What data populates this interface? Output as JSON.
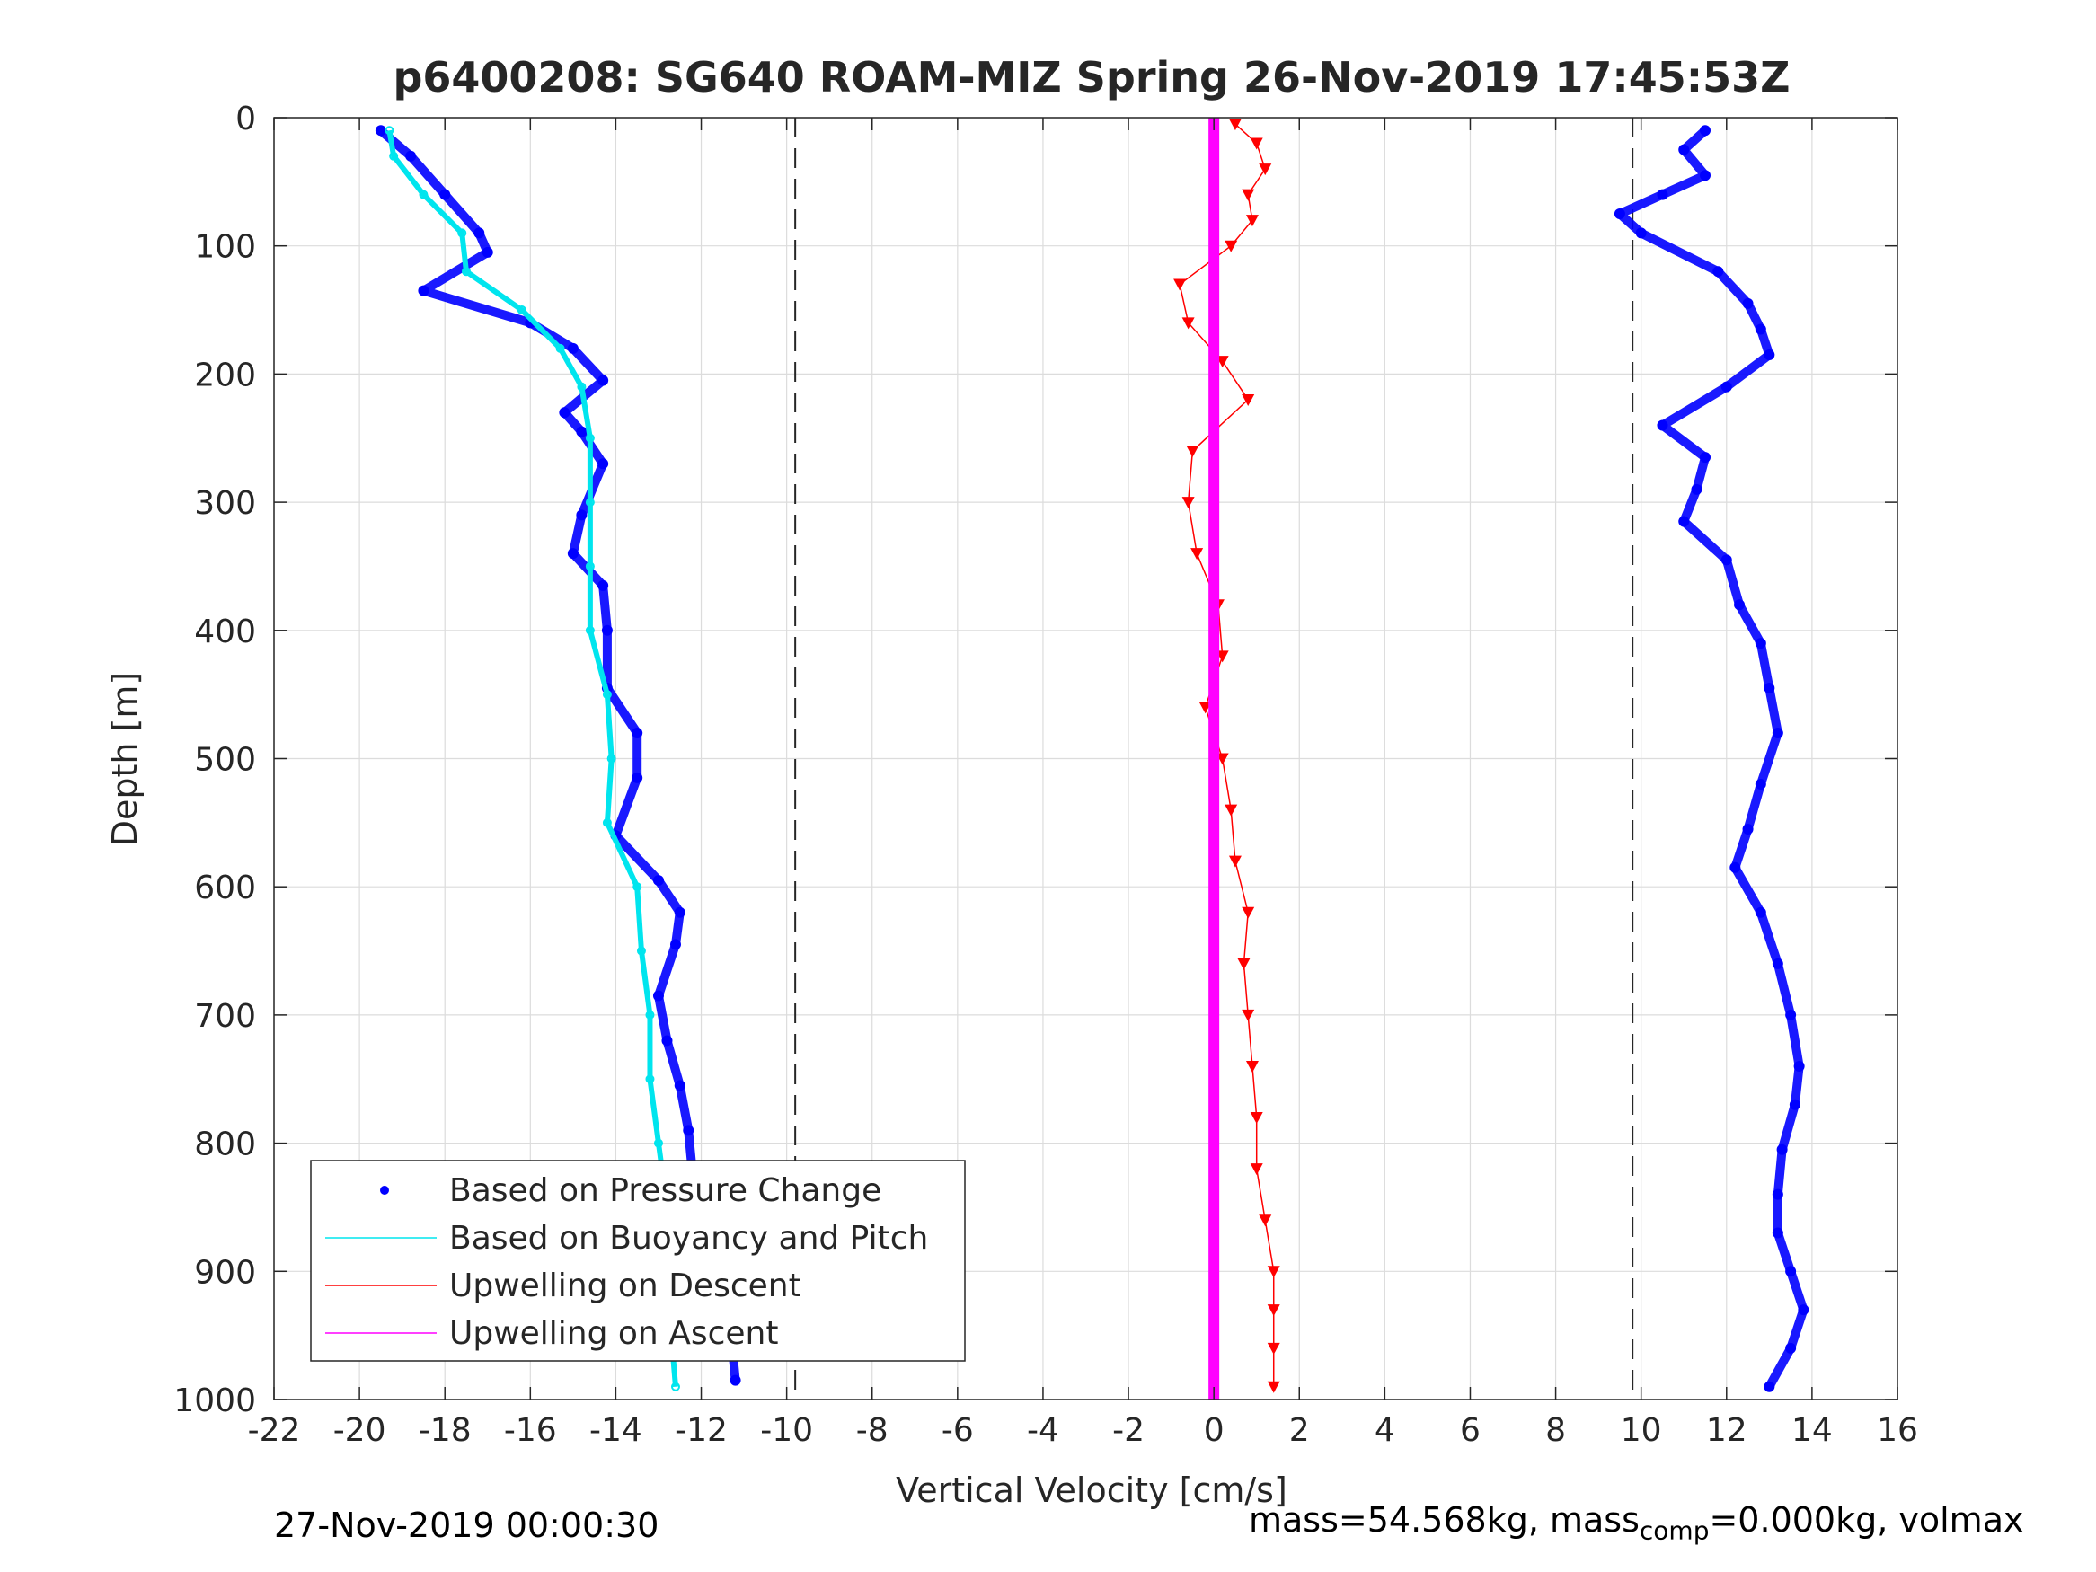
{
  "chart_data": {
    "type": "scatter",
    "title": "p6400208: SG640 ROAM-MIZ Spring 26-Nov-2019 17:45:53Z",
    "xlabel": "Vertical Velocity [cm/s]",
    "ylabel": "Depth [m]",
    "xlim": [
      -22,
      16
    ],
    "ylim": [
      0,
      1000
    ],
    "y_reversed": true,
    "grid": true,
    "x_ticks": [
      -22,
      -20,
      -18,
      -16,
      -14,
      -12,
      -10,
      -8,
      -6,
      -4,
      -2,
      0,
      2,
      4,
      6,
      8,
      10,
      12,
      14,
      16
    ],
    "y_ticks": [
      0,
      100,
      200,
      300,
      400,
      500,
      600,
      700,
      800,
      900,
      1000
    ],
    "reference_lines_x": [
      -9.8,
      9.8
    ],
    "legend_position": "bottom-left",
    "legend": [
      {
        "label": "Based on Pressure Change",
        "color": "#0000ff",
        "style": "dot"
      },
      {
        "label": "Based on Buoyancy and Pitch",
        "color": "#00e5ee",
        "style": "line"
      },
      {
        "label": "Upwelling on Descent",
        "color": "#ff0000",
        "style": "line"
      },
      {
        "label": "Upwelling on Ascent",
        "color": "#ff00ff",
        "style": "line"
      }
    ],
    "series": [
      {
        "name": "Based on Pressure Change",
        "color": "#0000ff",
        "description_phase": "descent",
        "depth": [
          10,
          30,
          60,
          90,
          105,
          135,
          160,
          180,
          205,
          230,
          245,
          270,
          310,
          340,
          365,
          400,
          445,
          480,
          515,
          560,
          595,
          620,
          645,
          685,
          720,
          755,
          790,
          825,
          865,
          900,
          925,
          950,
          985
        ],
        "velocity": [
          -19.5,
          -18.8,
          -18.0,
          -17.2,
          -17.0,
          -18.5,
          -16.0,
          -15.0,
          -14.3,
          -15.2,
          -14.8,
          -14.3,
          -14.8,
          -15.0,
          -14.3,
          -14.2,
          -14.2,
          -13.5,
          -13.5,
          -14.0,
          -13.0,
          -12.5,
          -12.6,
          -13.0,
          -12.8,
          -12.5,
          -12.3,
          -12.2,
          -11.8,
          -11.5,
          -11.5,
          -11.3,
          -11.2
        ]
      },
      {
        "name": "Based on Pressure Change",
        "color": "#0000ff",
        "description_phase": "ascent",
        "depth": [
          10,
          25,
          45,
          60,
          75,
          90,
          120,
          145,
          165,
          185,
          210,
          240,
          265,
          290,
          315,
          345,
          380,
          410,
          445,
          480,
          520,
          555,
          585,
          620,
          660,
          700,
          740,
          770,
          805,
          840,
          870,
          900,
          930,
          960,
          990
        ],
        "velocity": [
          11.5,
          11.0,
          11.5,
          10.5,
          9.5,
          10.0,
          11.8,
          12.5,
          12.8,
          13.0,
          12.0,
          10.5,
          11.5,
          11.3,
          11.0,
          12.0,
          12.3,
          12.8,
          13.0,
          13.2,
          12.8,
          12.5,
          12.2,
          12.8,
          13.2,
          13.5,
          13.7,
          13.6,
          13.3,
          13.2,
          13.2,
          13.5,
          13.8,
          13.5,
          13.0
        ]
      },
      {
        "name": "Based on Buoyancy and Pitch",
        "color": "#00e5ee",
        "depth": [
          10,
          30,
          60,
          90,
          120,
          150,
          180,
          210,
          250,
          300,
          350,
          400,
          450,
          500,
          550,
          600,
          650,
          700,
          750,
          800,
          850,
          900,
          950,
          990
        ],
        "velocity": [
          -19.3,
          -19.2,
          -18.5,
          -17.6,
          -17.5,
          -16.2,
          -15.3,
          -14.8,
          -14.6,
          -14.6,
          -14.6,
          -14.6,
          -14.2,
          -14.1,
          -14.2,
          -13.5,
          -13.4,
          -13.2,
          -13.2,
          -13.0,
          -12.8,
          -12.6,
          -12.7,
          -12.6
        ]
      },
      {
        "name": "Upwelling on Descent",
        "color": "#ff0000",
        "depth": [
          5,
          20,
          40,
          60,
          80,
          100,
          130,
          160,
          190,
          220,
          260,
          300,
          340,
          380,
          420,
          460,
          500,
          540,
          580,
          620,
          660,
          700,
          740,
          780,
          820,
          860,
          900,
          930,
          960,
          990
        ],
        "velocity": [
          0.5,
          1.0,
          1.2,
          0.8,
          0.9,
          0.4,
          -0.8,
          -0.6,
          0.2,
          0.8,
          -0.5,
          -0.6,
          -0.4,
          0.1,
          0.2,
          -0.2,
          0.2,
          0.4,
          0.5,
          0.8,
          0.7,
          0.8,
          0.9,
          1.0,
          1.0,
          1.2,
          1.4,
          1.4,
          1.4,
          1.4
        ]
      },
      {
        "name": "Upwelling on Ascent",
        "color": "#ff00ff",
        "depth": [
          0,
          1000
        ],
        "velocity": [
          0,
          0
        ]
      }
    ],
    "annotations": [
      {
        "text": "27-Nov-2019 00:00:30",
        "position": "bottom-left"
      },
      {
        "text": "mass=54.568kg, mass",
        "sub": "comp",
        "text2": "=0.000kg, volmax",
        "position": "bottom-right"
      }
    ]
  }
}
